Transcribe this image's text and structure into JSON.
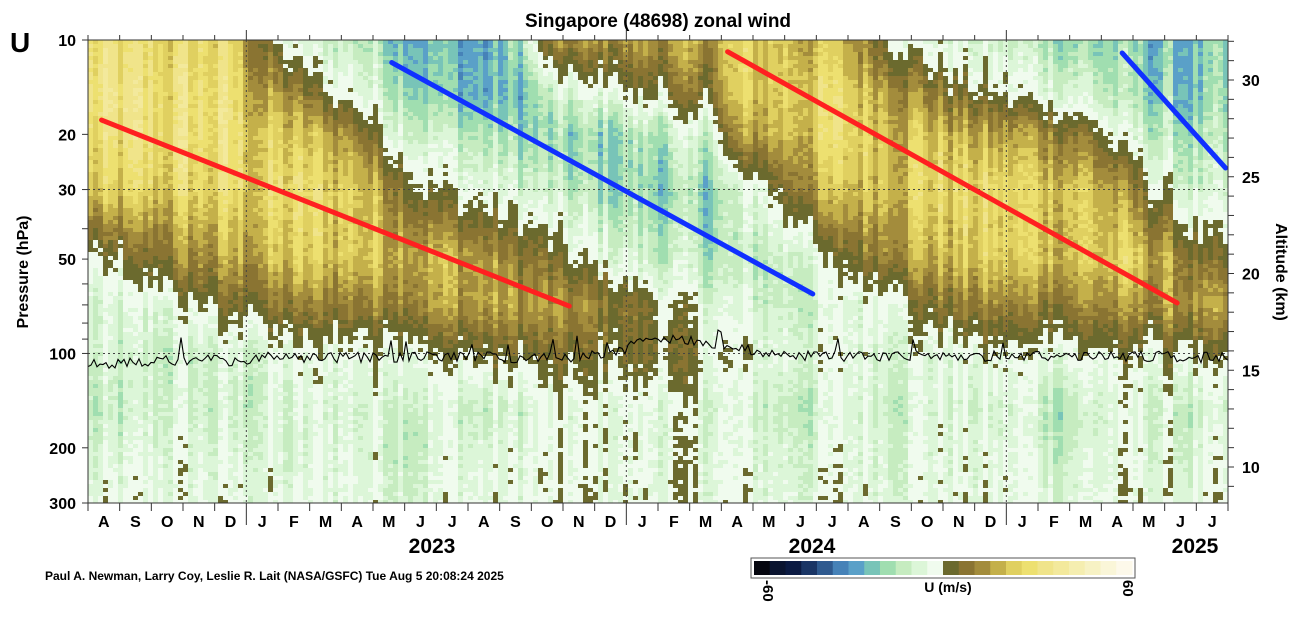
{
  "panel_letter": "U",
  "footer": "Paul A. Newman, Larry Coy, Leslie R. Lait (NASA/GSFC) Tue Aug  5 20:08:24 2025",
  "chart_data": {
    "type": "heatmap",
    "title": "Singapore (48698) zonal wind",
    "ylabel": "Pressure (hPa)",
    "y2label": "Altitude (km)",
    "yscale": "log",
    "ylim": [
      300,
      10
    ],
    "yticks": [
      "10",
      "20",
      "30",
      "50",
      "100",
      "200",
      "300"
    ],
    "y2lim_km": [
      8.5,
      32
    ],
    "y2ticks": [
      "10",
      "15",
      "20",
      "25",
      "30"
    ],
    "xlim": [
      "2022-08-01",
      "2025-08-01"
    ],
    "month_labels": [
      "A",
      "S",
      "O",
      "N",
      "D",
      "J",
      "F",
      "M",
      "A",
      "M",
      "J",
      "J",
      "A",
      "S",
      "O",
      "N",
      "D",
      "J",
      "F",
      "M",
      "A",
      "M",
      "J",
      "J",
      "A",
      "S",
      "O",
      "N",
      "D",
      "J",
      "F",
      "M",
      "A",
      "M",
      "J",
      "J"
    ],
    "year_labels": [
      "2023",
      "2024",
      "2025"
    ],
    "gridlines": "dotted at 30 hPa, 100 hPa and each January",
    "colorbar": {
      "label": "U (m/s)",
      "min_label": "-60",
      "max_label": "60",
      "range": [
        -60,
        60
      ],
      "step": 5,
      "colors": [
        "#05060f",
        "#0a1430",
        "#0b1a42",
        "#1a3565",
        "#2f5a8f",
        "#4682b8",
        "#5aa0c8",
        "#78c4b8",
        "#a0deb0",
        "#c6ecc0",
        "#dcf6d8",
        "#f0fbee",
        "#6b6a2e",
        "#8a7432",
        "#a38c3c",
        "#c4b04a",
        "#e0d060",
        "#ede070",
        "#f0e48a",
        "#f3e99c",
        "#f5eeb0",
        "#f7f2c4",
        "#faf6d8",
        "#fdf9ea"
      ]
    },
    "levels_hPa": [
      10,
      15,
      20,
      30,
      50,
      70,
      100,
      150,
      200,
      300
    ],
    "time": [
      "2022-08",
      "2022-09",
      "2022-10",
      "2022-11",
      "2022-12",
      "2023-01",
      "2023-02",
      "2023-03",
      "2023-04",
      "2023-05",
      "2023-06",
      "2023-07",
      "2023-08",
      "2023-09",
      "2023-10",
      "2023-11",
      "2023-12",
      "2024-01",
      "2024-02",
      "2024-03",
      "2024-04",
      "2024-05",
      "2024-06",
      "2024-07",
      "2024-08",
      "2024-09",
      "2024-10",
      "2024-11",
      "2024-12",
      "2025-01",
      "2025-02",
      "2025-03",
      "2025-04",
      "2025-05",
      "2025-06",
      "2025-07"
    ],
    "u_ms": [
      [
        25,
        30,
        25,
        20,
        -3,
        -10,
        -10,
        -15,
        -10,
        -6
      ],
      [
        25,
        28,
        28,
        22,
        2,
        -8,
        -12,
        -12,
        -8,
        -5
      ],
      [
        25,
        28,
        28,
        24,
        8,
        -5,
        -10,
        -8,
        -6,
        -4
      ],
      [
        25,
        28,
        28,
        25,
        12,
        0,
        -10,
        -10,
        -7,
        -5
      ],
      [
        25,
        28,
        28,
        25,
        15,
        3,
        -8,
        -12,
        -8,
        -5
      ],
      [
        5,
        15,
        22,
        25,
        18,
        5,
        -8,
        -8,
        -6,
        -4
      ],
      [
        -8,
        10,
        20,
        25,
        20,
        8,
        -5,
        -10,
        -12,
        -6
      ],
      [
        -10,
        2,
        18,
        25,
        22,
        10,
        -3,
        -6,
        -5,
        -4
      ],
      [
        -12,
        -3,
        12,
        24,
        22,
        10,
        -3,
        -8,
        -6,
        -4
      ],
      [
        -18,
        -10,
        -3,
        15,
        22,
        12,
        -2,
        -6,
        -8,
        -5
      ],
      [
        -22,
        -18,
        -8,
        3,
        20,
        14,
        0,
        -8,
        -10,
        -6
      ],
      [
        -25,
        -22,
        -12,
        -2,
        18,
        15,
        0,
        -8,
        -6,
        -4
      ],
      [
        -28,
        -25,
        -15,
        -5,
        15,
        15,
        2,
        -12,
        -8,
        -5
      ],
      [
        -20,
        -25,
        -18,
        -8,
        10,
        15,
        2,
        -10,
        -6,
        -4
      ],
      [
        8,
        -15,
        -20,
        -12,
        5,
        14,
        3,
        -6,
        -5,
        -4
      ],
      [
        12,
        -8,
        -20,
        -15,
        -2,
        12,
        3,
        -5,
        -4,
        -3
      ],
      [
        12,
        -5,
        -18,
        -18,
        -5,
        8,
        3,
        -4,
        -4,
        -3
      ],
      [
        15,
        0,
        -15,
        -18,
        -10,
        5,
        5,
        -6,
        -5,
        -4
      ],
      [
        15,
        3,
        -12,
        -20,
        -12,
        -2,
        3,
        -5,
        -4,
        -3
      ],
      [
        15,
        5,
        -10,
        -18,
        -14,
        -5,
        0,
        -6,
        -5,
        -4
      ],
      [
        22,
        20,
        12,
        -12,
        -15,
        -8,
        -3,
        -8,
        -6,
        -4
      ],
      [
        22,
        22,
        18,
        0,
        -12,
        -10,
        -5,
        -10,
        -8,
        -5
      ],
      [
        20,
        25,
        22,
        12,
        -8,
        -10,
        -5,
        -12,
        -8,
        -5
      ],
      [
        18,
        25,
        25,
        18,
        -2,
        -8,
        -5,
        -8,
        -6,
        -4
      ],
      [
        12,
        22,
        25,
        22,
        8,
        -5,
        -5,
        -6,
        -5,
        -4
      ],
      [
        0,
        18,
        24,
        25,
        15,
        0,
        -5,
        -8,
        -6,
        -4
      ],
      [
        -5,
        10,
        22,
        25,
        18,
        5,
        -5,
        -6,
        -5,
        -4
      ],
      [
        -8,
        5,
        18,
        25,
        20,
        8,
        -5,
        -8,
        -6,
        -4
      ],
      [
        -10,
        0,
        15,
        25,
        22,
        10,
        -3,
        -10,
        -6,
        -4
      ],
      [
        -12,
        -2,
        15,
        24,
        22,
        10,
        -3,
        -6,
        -5,
        -4
      ],
      [
        -15,
        -5,
        12,
        24,
        22,
        10,
        -3,
        -14,
        -10,
        -5
      ],
      [
        -18,
        -8,
        8,
        22,
        22,
        12,
        -2,
        -10,
        -8,
        -5
      ],
      [
        -20,
        -15,
        -5,
        15,
        22,
        12,
        -2,
        -6,
        -5,
        -4
      ],
      [
        -22,
        -18,
        -12,
        2,
        20,
        12,
        -2,
        -8,
        -6,
        -4
      ],
      [
        -25,
        -22,
        -15,
        -8,
        12,
        15,
        0,
        -10,
        -8,
        -5
      ],
      [
        -25,
        -22,
        -18,
        -12,
        2,
        12,
        -2,
        -12,
        -8,
        -5
      ]
    ],
    "black_line_hPa": [
      108,
      106,
      105,
      105,
      106,
      103,
      103,
      103,
      103,
      103,
      103,
      103,
      103,
      103,
      103,
      103,
      101,
      92,
      90,
      92,
      96,
      101,
      102,
      102,
      102,
      102,
      102,
      102,
      102,
      102,
      102,
      102,
      102,
      102,
      103,
      103
    ],
    "overlay_lines": [
      {
        "color": "#ff2020",
        "from": {
          "date": "2022-08-14",
          "hPa": 18
        },
        "to": {
          "date": "2023-11-07",
          "hPa": 70.6
        }
      },
      {
        "color": "#1030ff",
        "from": {
          "date": "2023-05-19",
          "hPa": 11.8
        },
        "to": {
          "date": "2024-06-28",
          "hPa": 64.6
        }
      },
      {
        "color": "#ff2020",
        "from": {
          "date": "2024-04-07",
          "hPa": 10.9
        },
        "to": {
          "date": "2025-06-13",
          "hPa": 69
        }
      },
      {
        "color": "#1030ff",
        "from": {
          "date": "2025-04-21",
          "hPa": 11
        },
        "to": {
          "date": "2025-07-29",
          "hPa": 25.6
        }
      }
    ]
  }
}
